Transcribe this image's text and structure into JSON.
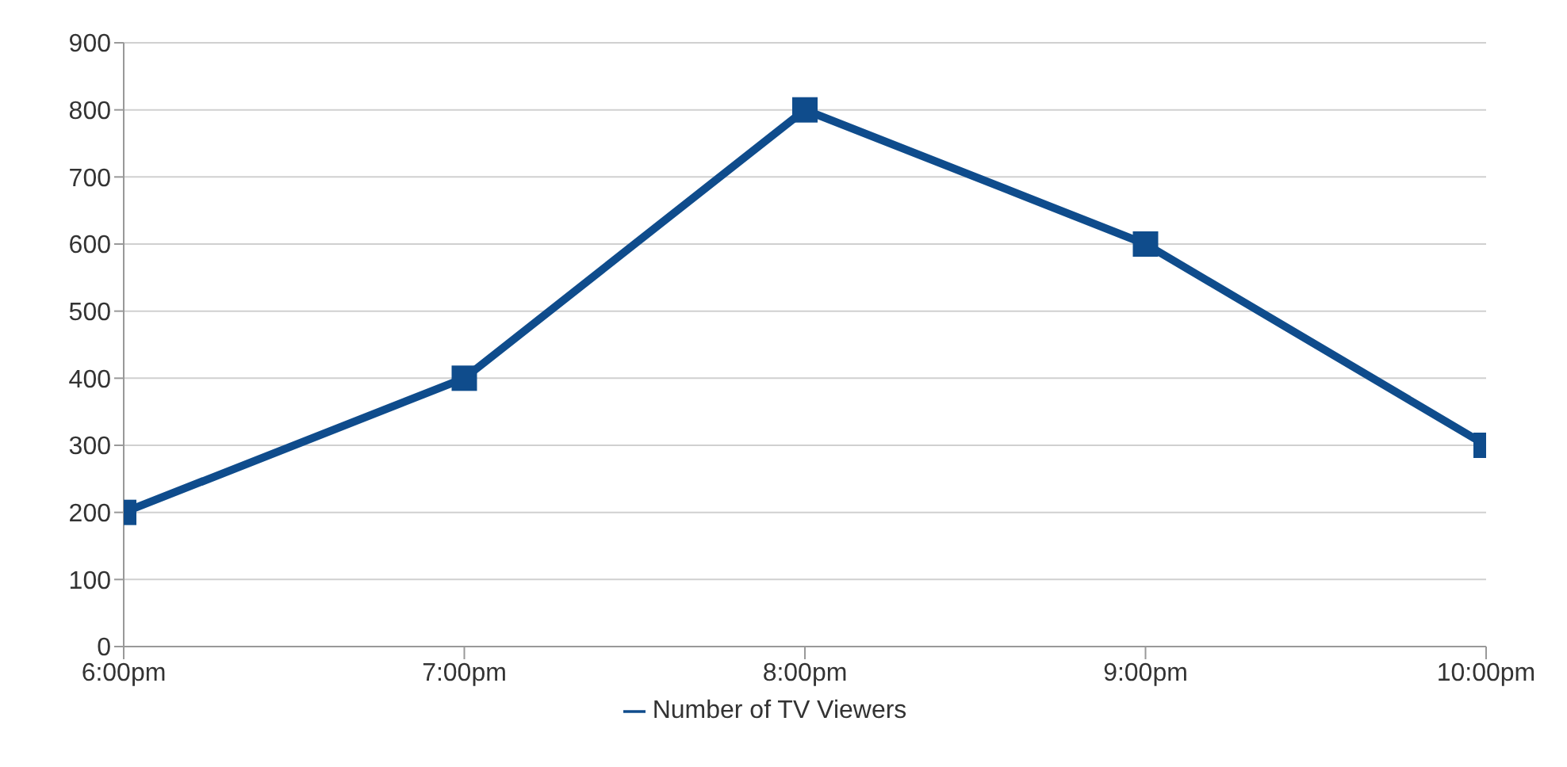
{
  "chart_data": {
    "type": "line",
    "x": [
      18,
      19,
      20,
      21,
      22
    ],
    "series": [
      {
        "name": "Number of TV Viewers",
        "color": "#0f4c8c",
        "values": [
          200,
          400,
          800,
          600,
          300
        ]
      }
    ],
    "xlim": [
      18,
      22
    ],
    "xticks": [
      {
        "value": 18,
        "label": "6:00pm"
      },
      {
        "value": 19,
        "label": "7:00pm"
      },
      {
        "value": 20,
        "label": "8:00pm"
      },
      {
        "value": 21,
        "label": "9:00pm"
      },
      {
        "value": 22,
        "label": "10:00pm"
      }
    ],
    "ylim": [
      0,
      900
    ],
    "yticks": [
      0,
      100,
      200,
      300,
      400,
      500,
      600,
      700,
      800,
      900
    ],
    "grid": "y",
    "legend": "bottom",
    "marker": "square",
    "line_style": "solid"
  }
}
